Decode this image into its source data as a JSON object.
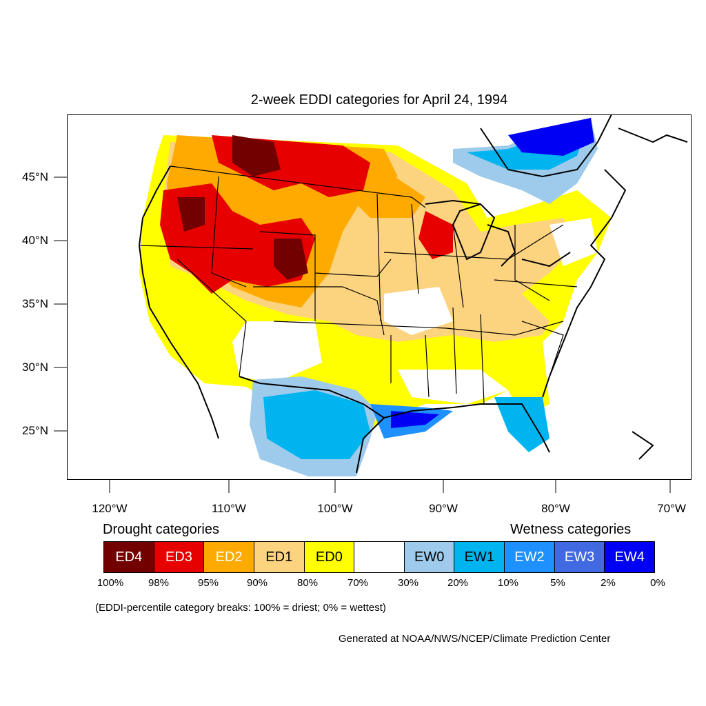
{
  "title": "2-week EDDI categories for April 24, 1994",
  "lat_labels": [
    "45°N",
    "40°N",
    "35°N",
    "30°N",
    "25°N"
  ],
  "lon_labels": [
    "120°W",
    "110°W",
    "100°W",
    "90°W",
    "80°W",
    "70°W"
  ],
  "legend": {
    "drought_heading": "Drought categories",
    "wetness_heading": "Wetness categories",
    "categories": [
      {
        "label": "ED4",
        "color": "#730000",
        "text_color": "#ffffff"
      },
      {
        "label": "ED3",
        "color": "#e60000",
        "text_color": "#ffffff"
      },
      {
        "label": "ED2",
        "color": "#ffaa00",
        "text_color": "#ffffff"
      },
      {
        "label": "ED1",
        "color": "#fcd37f",
        "text_color": "#000000"
      },
      {
        "label": "ED0",
        "color": "#ffff00",
        "text_color": "#000000"
      },
      {
        "label": "",
        "color": "#ffffff",
        "text_color": "#000000"
      },
      {
        "label": "EW0",
        "color": "#9ecbeb",
        "text_color": "#000000"
      },
      {
        "label": "EW1",
        "color": "#00b4f0",
        "text_color": "#000000"
      },
      {
        "label": "EW2",
        "color": "#1e90ff",
        "text_color": "#ffffff"
      },
      {
        "label": "EW3",
        "color": "#4169e1",
        "text_color": "#ffffff"
      },
      {
        "label": "EW4",
        "color": "#0000f5",
        "text_color": "#ffffff"
      }
    ],
    "breaks": [
      "100%",
      "98%",
      "95%",
      "90%",
      "80%",
      "70%",
      "30%",
      "20%",
      "10%",
      "5%",
      "2%",
      "0%"
    ]
  },
  "breaks_note": "(EDDI-percentile category breaks: 100% = driest; 0% = wettest)",
  "credit": "Generated at NOAA/NWS/NCEP/Climate Prediction Center"
}
